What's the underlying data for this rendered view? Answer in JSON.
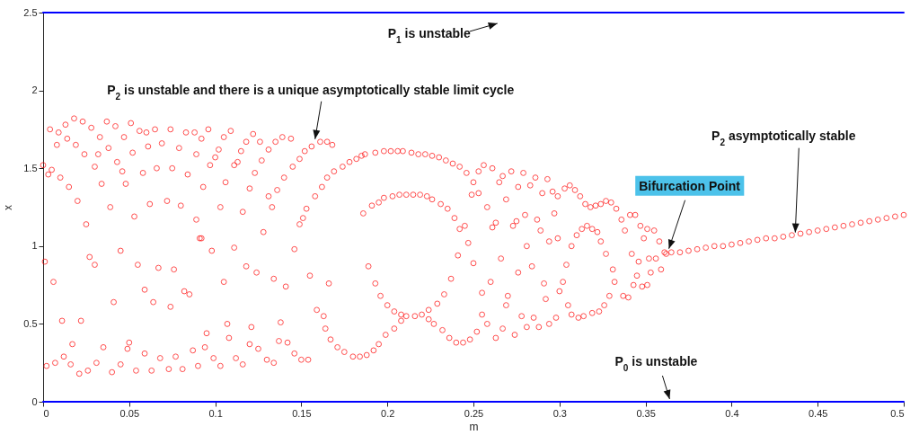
{
  "chart_data": {
    "type": "scatter",
    "xlabel": "m",
    "ylabel": "x",
    "xlim": [
      0,
      0.5
    ],
    "ylim": [
      0,
      2.5
    ],
    "xticks": [
      0,
      0.05,
      0.1,
      0.15,
      0.2,
      0.25,
      0.3,
      0.35,
      0.4,
      0.45,
      0.5
    ],
    "yticks": [
      0,
      0.5,
      1,
      1.5,
      2,
      2.5
    ],
    "grid": false,
    "series": [
      {
        "marker": "circle",
        "color": "#ff0000",
        "x": [
          0,
          0.003,
          0.005,
          0.004,
          0.009,
          0.013,
          0.018,
          0.023,
          0.028,
          0.037,
          0.042,
          0.051,
          0.056,
          0.06,
          0.065,
          0.074,
          0.083,
          0.088,
          0.008,
          0.014,
          0.019,
          0.033,
          0.047,
          0.024,
          0.032,
          0.038,
          0.052,
          0.061,
          0.069,
          0.079,
          0.089,
          0.03,
          0.043,
          0.046,
          0.058,
          0.066,
          0.075,
          0.084,
          0.01,
          0.015,
          0.034,
          0.048,
          0.02,
          0.039,
          0.053,
          0.062,
          0.072,
          0.08,
          0.089,
          0.025,
          0.091,
          0.045,
          0.001,
          0.027,
          0.03,
          0.055,
          0.067,
          0.076,
          0.006,
          0.059,
          0.082,
          0.085,
          0.041,
          0.064,
          0.074,
          0.011,
          0.022,
          0.017,
          0.035,
          0.05,
          0.049,
          0.087,
          0.012,
          0.059,
          0.068,
          0.077,
          0.007,
          0.016,
          0.031,
          0.045,
          0.002,
          0.09,
          0.021,
          0.026,
          0.04,
          0.054,
          0.063,
          0.073,
          0.081,
          0.096,
          0.092,
          0.105,
          0.109,
          0.118,
          0.122,
          0.126,
          0.135,
          0.139,
          0.144,
          0.102,
          0.097,
          0.1,
          0.115,
          0.111,
          0.113,
          0.131,
          0.127,
          0.123,
          0.093,
          0.106,
          0.12,
          0.131,
          0.103,
          0.116,
          0.092,
          0.098,
          0.111,
          0.146,
          0.118,
          0.124,
          0.134,
          0.141,
          0.155,
          0.105,
          0.166,
          0.107,
          0.121,
          0.138,
          0.095,
          0.108,
          0.12,
          0.137,
          0.142,
          0.094,
          0.125,
          0.146,
          0.099,
          0.112,
          0.13,
          0.15,
          0.154,
          0.103,
          0.116,
          0.134,
          0.156,
          0.161,
          0.165,
          0.168,
          0.152,
          0.149,
          0.145,
          0.14,
          0.136,
          0.133,
          0.128,
          0.149,
          0.151,
          0.153,
          0.158,
          0.162,
          0.165,
          0.169,
          0.174,
          0.178,
          0.182,
          0.185,
          0.159,
          0.163,
          0.164,
          0.167,
          0.171,
          0.175,
          0.18,
          0.184,
          0.188,
          0.192,
          0.195,
          0.199,
          0.204,
          0.208,
          0.211,
          0.216,
          0.22,
          0.224,
          0.227,
          0.232,
          0.236,
          0.24,
          0.244,
          0.248,
          0.252,
          0.189,
          0.193,
          0.196,
          0.2,
          0.204,
          0.208,
          0.224,
          0.229,
          0.233,
          0.237,
          0.241,
          0.247,
          0.25,
          0.186,
          0.191,
          0.195,
          0.198,
          0.203,
          0.207,
          0.211,
          0.215,
          0.219,
          0.223,
          0.226,
          0.231,
          0.235,
          0.239,
          0.242,
          0.245,
          0.187,
          0.193,
          0.198,
          0.202,
          0.206,
          0.209,
          0.214,
          0.218,
          0.222,
          0.226,
          0.23,
          0.234,
          0.238,
          0.242,
          0.246,
          0.25,
          0.249,
          0.253,
          0.258,
          0.256,
          0.261,
          0.253,
          0.272,
          0.267,
          0.265,
          0.279,
          0.276,
          0.283,
          0.269,
          0.28,
          0.275,
          0.273,
          0.263,
          0.261,
          0.281,
          0.266,
          0.276,
          0.26,
          0.255,
          0.27,
          0.269,
          0.255,
          0.258,
          0.278,
          0.267,
          0.281,
          0.263,
          0.274,
          0.286,
          0.293,
          0.29,
          0.296,
          0.299,
          0.297,
          0.287,
          0.289,
          0.294,
          0.299,
          0.304,
          0.284,
          0.291,
          0.302,
          0.3,
          0.292,
          0.305,
          0.285,
          0.298,
          0.294,
          0.288,
          0.303,
          0.306,
          0.309,
          0.312,
          0.315,
          0.318,
          0.321,
          0.324,
          0.327,
          0.33,
          0.333,
          0.336,
          0.341,
          0.344,
          0.338,
          0.347,
          0.351,
          0.355,
          0.349,
          0.358,
          0.342,
          0.352,
          0.356,
          0.346,
          0.345,
          0.353,
          0.359,
          0.343,
          0.348,
          0.351,
          0.337,
          0.34,
          0.361,
          0.307,
          0.311,
          0.314,
          0.319,
          0.323,
          0.326,
          0.329,
          0.332,
          0.331,
          0.327,
          0.324,
          0.322,
          0.319,
          0.316,
          0.313,
          0.31,
          0.307,
          0.362,
          0.365,
          0.37,
          0.375,
          0.38,
          0.385,
          0.39,
          0.395,
          0.4,
          0.405,
          0.41,
          0.415,
          0.42,
          0.425,
          0.43,
          0.435,
          0.44,
          0.445,
          0.45,
          0.455,
          0.46,
          0.465,
          0.47,
          0.475,
          0.48,
          0.485,
          0.49,
          0.495,
          0.5
        ],
        "values": [
          1.52,
          1.46,
          1.49,
          1.75,
          1.73,
          1.78,
          1.82,
          1.8,
          1.76,
          1.8,
          1.77,
          1.79,
          1.74,
          1.73,
          1.75,
          1.75,
          1.73,
          1.73,
          1.65,
          1.69,
          1.65,
          1.7,
          1.7,
          1.59,
          1.59,
          1.63,
          1.6,
          1.64,
          1.66,
          1.63,
          1.59,
          1.51,
          1.54,
          1.48,
          1.47,
          1.5,
          1.5,
          1.46,
          1.44,
          1.38,
          1.4,
          1.4,
          1.29,
          1.25,
          1.19,
          1.27,
          1.29,
          1.26,
          1.17,
          1.14,
          1.05,
          0.97,
          0.9,
          0.93,
          0.88,
          0.88,
          0.86,
          0.85,
          0.77,
          0.72,
          0.71,
          0.69,
          0.64,
          0.64,
          0.61,
          0.52,
          0.52,
          0.37,
          0.35,
          0.38,
          0.34,
          0.33,
          0.29,
          0.31,
          0.28,
          0.29,
          0.25,
          0.24,
          0.25,
          0.24,
          0.23,
          0.23,
          0.18,
          0.2,
          0.19,
          0.2,
          0.2,
          0.21,
          0.21,
          1.75,
          1.69,
          1.7,
          1.74,
          1.67,
          1.72,
          1.67,
          1.67,
          1.7,
          1.69,
          1.62,
          1.52,
          1.57,
          1.61,
          1.52,
          1.54,
          1.62,
          1.55,
          1.47,
          1.38,
          1.41,
          1.37,
          1.32,
          1.25,
          1.22,
          1.05,
          0.97,
          0.99,
          0.98,
          0.87,
          0.83,
          0.79,
          0.74,
          0.81,
          0.77,
          0.76,
          0.5,
          0.48,
          0.51,
          0.44,
          0.41,
          0.37,
          0.39,
          0.38,
          0.35,
          0.34,
          0.31,
          0.28,
          0.28,
          0.27,
          0.27,
          0.27,
          0.23,
          0.24,
          0.25,
          1.64,
          1.67,
          1.67,
          1.65,
          1.61,
          1.56,
          1.51,
          1.44,
          1.36,
          1.25,
          1.09,
          1.14,
          1.18,
          1.24,
          1.32,
          1.38,
          1.44,
          1.48,
          1.51,
          1.54,
          1.56,
          1.58,
          0.59,
          0.55,
          0.47,
          0.4,
          0.35,
          0.32,
          0.29,
          0.29,
          0.3,
          0.33,
          0.37,
          0.43,
          0.47,
          0.52,
          0.55,
          0.55,
          0.56,
          0.53,
          0.5,
          0.46,
          0.41,
          0.38,
          0.38,
          0.4,
          0.45,
          0.87,
          0.76,
          0.68,
          0.62,
          0.58,
          0.56,
          0.59,
          0.63,
          0.69,
          0.79,
          0.94,
          1.02,
          0.89,
          1.21,
          1.26,
          1.28,
          1.31,
          1.32,
          1.33,
          1.33,
          1.33,
          1.33,
          1.32,
          1.3,
          1.27,
          1.24,
          1.18,
          1.11,
          1.13,
          1.59,
          1.6,
          1.61,
          1.61,
          1.61,
          1.61,
          1.6,
          1.59,
          1.59,
          1.58,
          1.57,
          1.55,
          1.53,
          1.51,
          1.47,
          1.41,
          1.33,
          1.34,
          1.25,
          1.52,
          1.5,
          1.48,
          1.48,
          1.45,
          1.41,
          1.47,
          1.38,
          1.39,
          1.3,
          1.2,
          1.16,
          1.13,
          1.15,
          1.12,
          1.0,
          0.92,
          0.83,
          0.77,
          0.7,
          0.68,
          0.62,
          0.56,
          0.5,
          0.55,
          0.47,
          0.48,
          0.41,
          0.43,
          1.44,
          1.43,
          1.34,
          1.35,
          1.32,
          1.21,
          1.17,
          1.1,
          1.03,
          1.05,
          0.88,
          0.87,
          0.76,
          0.77,
          0.71,
          0.66,
          0.62,
          0.54,
          0.54,
          0.5,
          0.48,
          1.37,
          1.39,
          1.36,
          1.32,
          1.27,
          1.25,
          1.26,
          1.27,
          1.29,
          1.28,
          1.24,
          1.17,
          1.2,
          1.2,
          1.1,
          1.13,
          1.11,
          1.1,
          1.05,
          1.03,
          0.95,
          0.92,
          0.92,
          0.9,
          0.81,
          0.83,
          0.85,
          0.75,
          0.74,
          0.75,
          0.68,
          0.67,
          0.96,
          0.56,
          0.54,
          0.55,
          0.57,
          0.58,
          0.62,
          0.68,
          0.77,
          0.85,
          0.95,
          1.03,
          1.09,
          1.11,
          1.13,
          1.11,
          1.07,
          1.0,
          0.95,
          0.96,
          0.96,
          0.97,
          0.98,
          0.99,
          1.0,
          1.0,
          1.01,
          1.02,
          1.03,
          1.04,
          1.05,
          1.05,
          1.06,
          1.07,
          1.08,
          1.09,
          1.1,
          1.11,
          1.12,
          1.13,
          1.14,
          1.15,
          1.16,
          1.17,
          1.18,
          1.19,
          1.2
        ]
      },
      {
        "type": "line",
        "marker": "none",
        "color": "#0000ff",
        "x": [
          0,
          0.5
        ],
        "values": [
          0,
          0
        ]
      },
      {
        "type": "line",
        "marker": "none",
        "color": "#0000ff",
        "x": [
          0,
          0.5
        ],
        "values": [
          2.5,
          2.5
        ]
      }
    ],
    "annotations": [
      {
        "text": "P$_{1}$ is unstable",
        "x": 0.265,
        "y": 2.5
      },
      {
        "text": "P$_{2}$ is unstable and there is a unique asymptotically stable limit cycle",
        "x": 0.158,
        "y": 1.67
      },
      {
        "text": "P$_{2}$ asymptotically stable",
        "x": 0.437,
        "y": 1.07
      },
      {
        "text": "Bifurcation Point",
        "x": 0.362,
        "y": 0.96
      },
      {
        "text": "P$_{0}$ is unstable",
        "x": 0.364,
        "y": 0
      }
    ]
  }
}
